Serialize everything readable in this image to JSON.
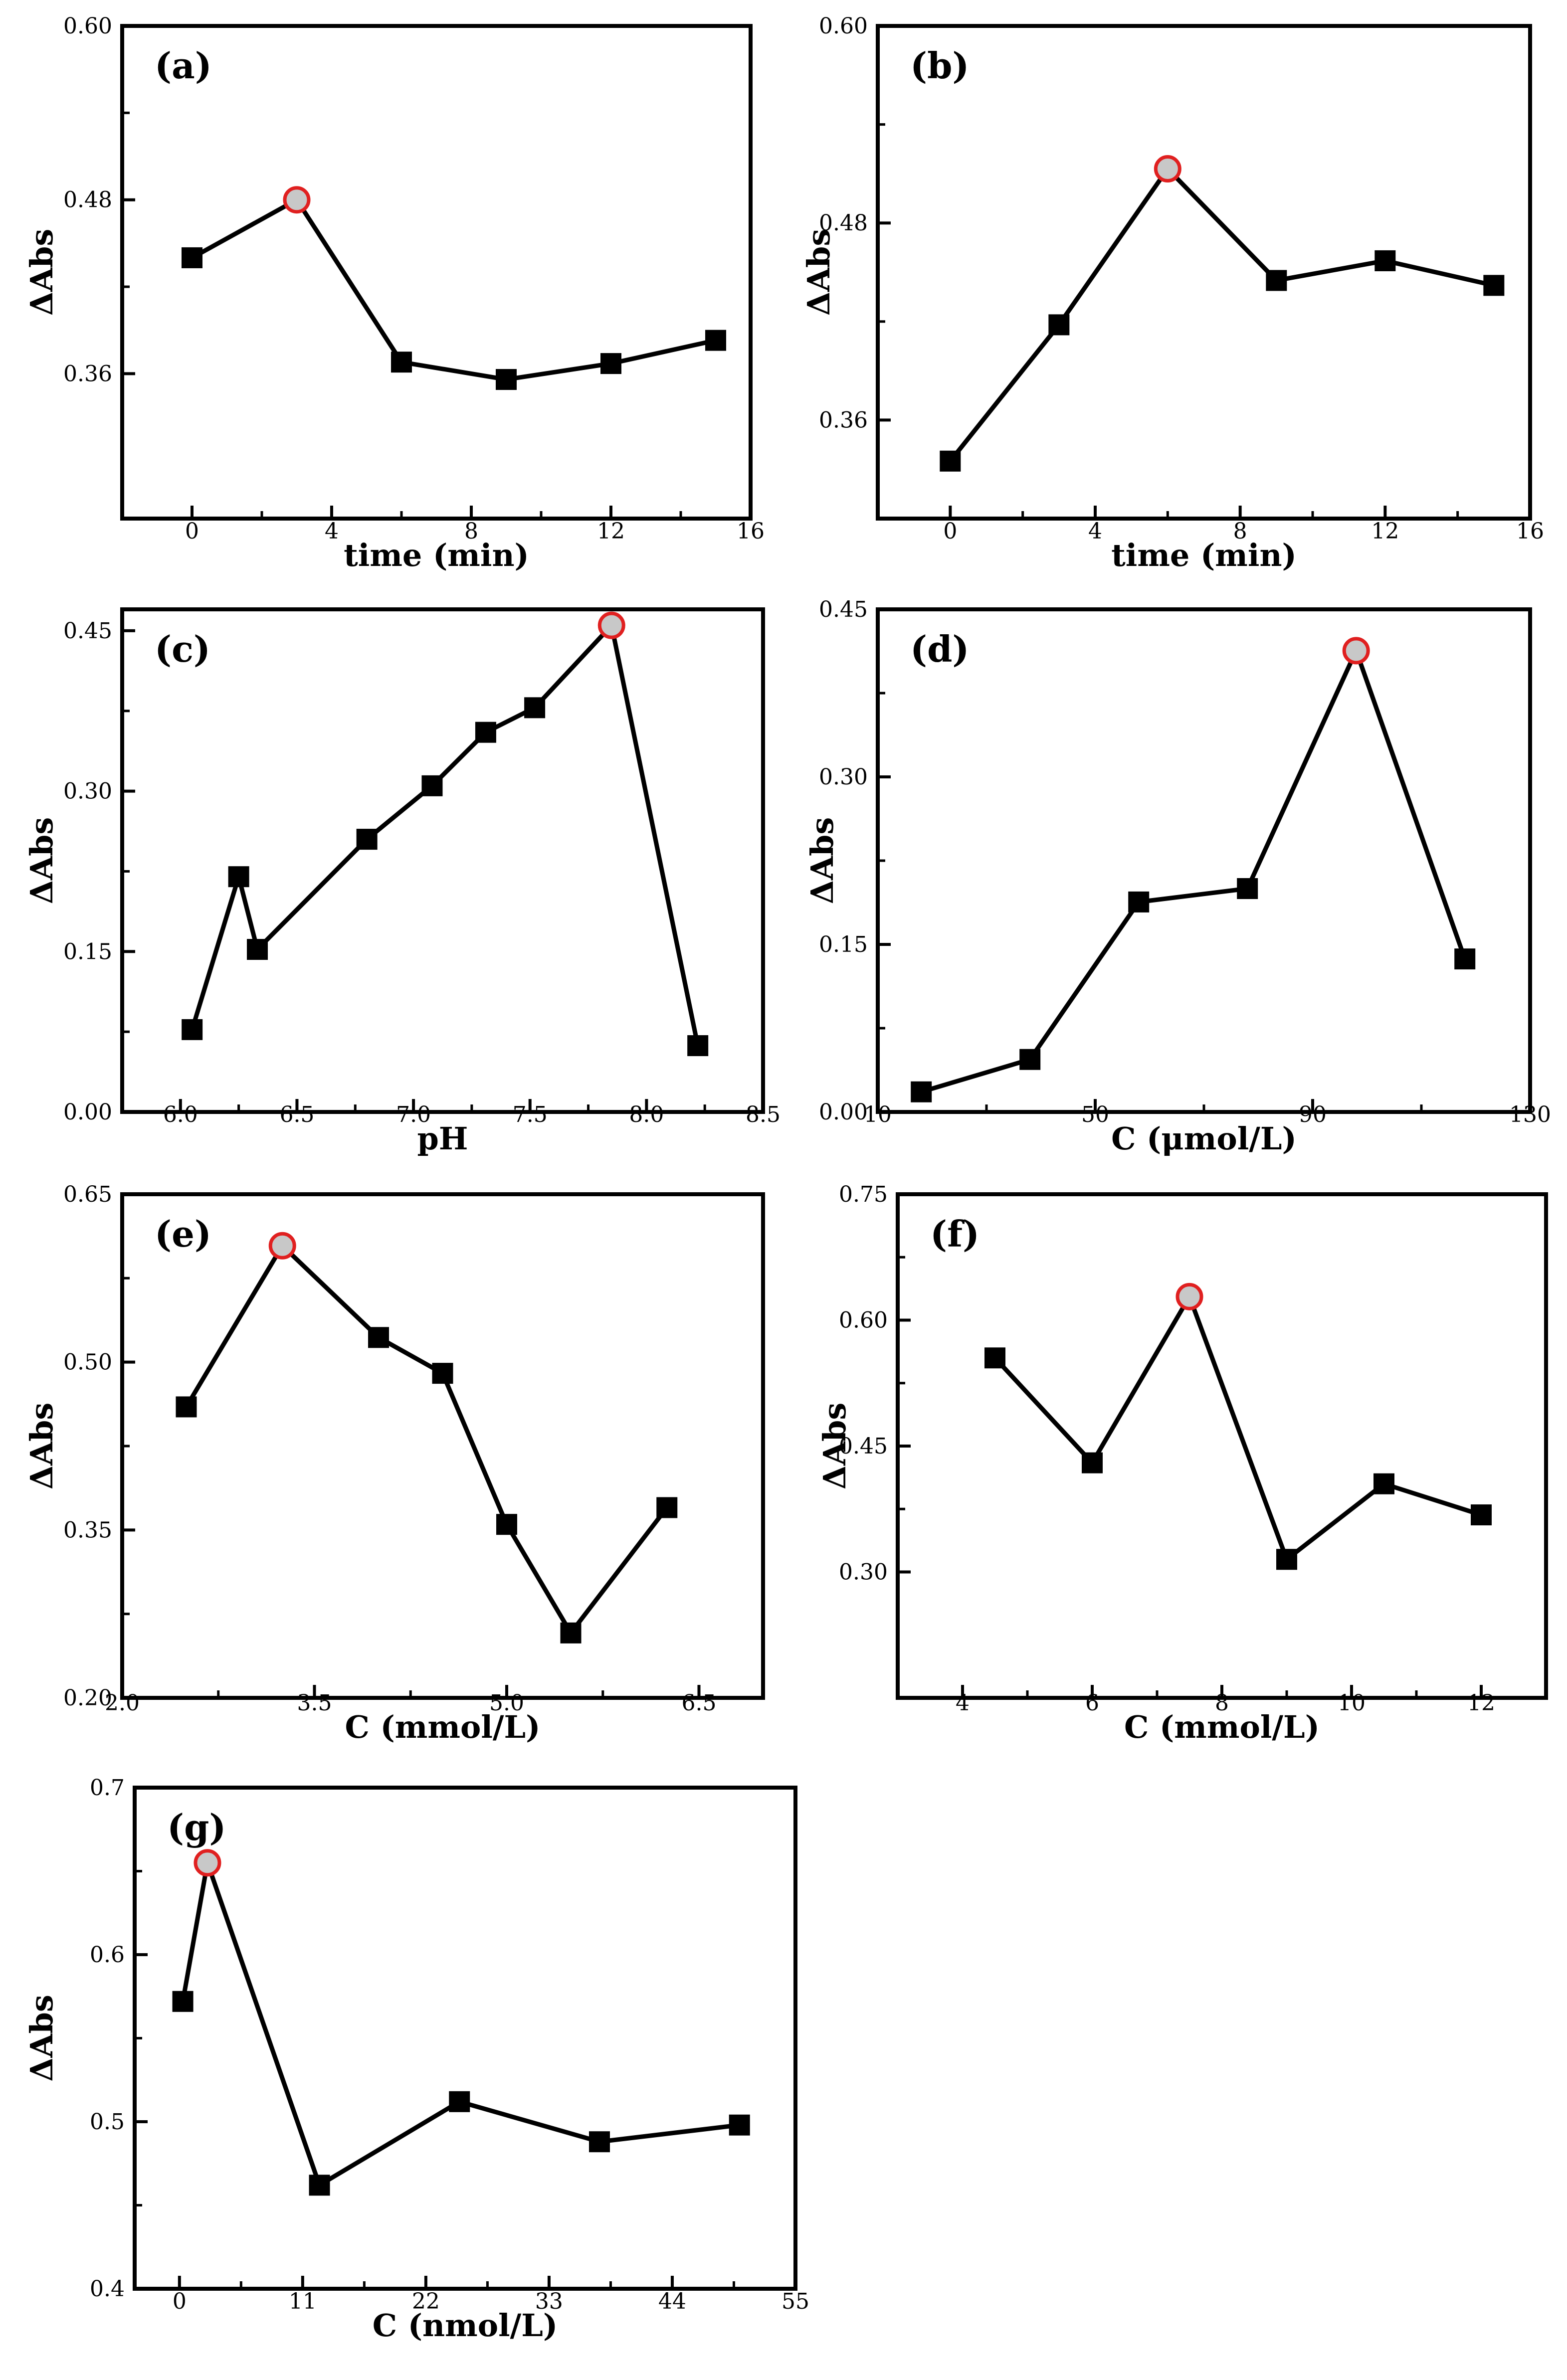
{
  "figure": {
    "title": ""
  },
  "colors": {
    "line": "#000000",
    "marker": "#000000",
    "highlight_fill": "#c8c8c8",
    "highlight_stroke": "#e02020"
  },
  "chart_data": [
    {
      "id": "a",
      "panel_label": "(a)",
      "type": "line",
      "xlabel": "time (min)",
      "ylabel": "ΔAbs",
      "xlim": [
        -2,
        16
      ],
      "ylim": [
        0.26,
        0.6
      ],
      "xticks": [
        0,
        4,
        8,
        12,
        16
      ],
      "xtick_labels": [
        "0",
        "4",
        "8",
        "12",
        "16"
      ],
      "yticks": [
        0.36,
        0.48,
        0.6
      ],
      "ytick_labels": [
        "0.36",
        "0.48",
        "0.60"
      ],
      "x": [
        0,
        3,
        6,
        9,
        12,
        15
      ],
      "y": [
        0.44,
        0.48,
        0.368,
        0.356,
        0.367,
        0.383
      ],
      "highlight_index": 1
    },
    {
      "id": "b",
      "panel_label": "(b)",
      "type": "line",
      "xlabel": "time (min)",
      "ylabel": "ΔAbs",
      "xlim": [
        -2,
        16
      ],
      "ylim": [
        0.3,
        0.6
      ],
      "xticks": [
        0,
        4,
        8,
        12,
        16
      ],
      "xtick_labels": [
        "0",
        "4",
        "8",
        "12",
        "16"
      ],
      "yticks": [
        0.36,
        0.48,
        0.6
      ],
      "ytick_labels": [
        "0.36",
        "0.48",
        "0.60"
      ],
      "x": [
        0,
        3,
        6,
        9,
        12,
        15
      ],
      "y": [
        0.335,
        0.418,
        0.513,
        0.445,
        0.457,
        0.442
      ],
      "highlight_index": 2
    },
    {
      "id": "c",
      "panel_label": "(c)",
      "type": "line",
      "xlabel": "pH",
      "ylabel": "ΔAbs",
      "xlim": [
        5.75,
        8.5
      ],
      "ylim": [
        0.0,
        0.47
      ],
      "xticks": [
        6.0,
        6.5,
        7.0,
        7.5,
        8.0,
        8.5
      ],
      "xtick_labels": [
        "6.0",
        "6.5",
        "7.0",
        "7.5",
        "8.0",
        "8.5"
      ],
      "yticks": [
        0.0,
        0.15,
        0.3,
        0.45
      ],
      "ytick_labels": [
        "0.00",
        "0.15",
        "0.30",
        "0.45"
      ],
      "x": [
        6.05,
        6.25,
        6.33,
        6.8,
        7.08,
        7.31,
        7.52,
        7.85,
        8.22
      ],
      "y": [
        0.077,
        0.22,
        0.152,
        0.255,
        0.305,
        0.355,
        0.378,
        0.455,
        0.062
      ],
      "highlight_index": 7
    },
    {
      "id": "d",
      "panel_label": "(d)",
      "type": "line",
      "xlabel": "C (μmol/L)",
      "ylabel": "ΔAbs",
      "xlim": [
        10,
        130
      ],
      "ylim": [
        0.0,
        0.45
      ],
      "xticks": [
        10,
        50,
        90,
        130
      ],
      "xtick_labels": [
        "10",
        "50",
        "90",
        "130"
      ],
      "yticks": [
        0.0,
        0.15,
        0.3,
        0.45
      ],
      "ytick_labels": [
        "0.00",
        "0.15",
        "0.30",
        "0.45"
      ],
      "x": [
        18,
        38,
        58,
        78,
        98,
        118
      ],
      "y": [
        0.018,
        0.047,
        0.188,
        0.2,
        0.413,
        0.137
      ],
      "highlight_index": 4
    },
    {
      "id": "e",
      "panel_label": "(e)",
      "type": "line",
      "xlabel": "C (mmol/L)",
      "ylabel": "ΔAbs",
      "xlim": [
        2.0,
        7.0
      ],
      "ylim": [
        0.2,
        0.65
      ],
      "xticks": [
        2.0,
        3.5,
        5.0,
        6.5
      ],
      "xtick_labels": [
        "2.0",
        "3.5",
        "5.0",
        "6.5"
      ],
      "yticks": [
        0.2,
        0.35,
        0.5,
        0.65
      ],
      "ytick_labels": [
        "0.20",
        "0.35",
        "0.50",
        "0.65"
      ],
      "x": [
        2.5,
        3.25,
        4.0,
        4.5,
        5.0,
        5.5,
        6.25
      ],
      "y": [
        0.46,
        0.604,
        0.522,
        0.49,
        0.355,
        0.258,
        0.37
      ],
      "highlight_index": 1
    },
    {
      "id": "f",
      "panel_label": "(f)",
      "type": "line",
      "xlabel": "C (mmol/L)",
      "ylabel": "ΔAbs",
      "xlim": [
        3,
        13
      ],
      "ylim": [
        0.15,
        0.75
      ],
      "xticks": [
        4,
        6,
        8,
        10,
        12
      ],
      "xtick_labels": [
        "4",
        "6",
        "8",
        "10",
        "12"
      ],
      "yticks": [
        0.3,
        0.45,
        0.6,
        0.75
      ],
      "ytick_labels": [
        "0.30",
        "0.45",
        "0.60",
        "0.75"
      ],
      "x": [
        4.5,
        6,
        7.5,
        9,
        10.5,
        12
      ],
      "y": [
        0.555,
        0.43,
        0.628,
        0.315,
        0.405,
        0.368
      ],
      "highlight_index": 2
    },
    {
      "id": "g",
      "panel_label": "(g)",
      "type": "line",
      "xlabel": "C (nmol/L)",
      "ylabel": "ΔAbs",
      "xlim": [
        -4,
        55
      ],
      "ylim": [
        0.4,
        0.7
      ],
      "xticks": [
        0,
        11,
        22,
        33,
        44,
        55
      ],
      "xtick_labels": [
        "0",
        "11",
        "22",
        "33",
        "44",
        "55"
      ],
      "yticks": [
        0.4,
        0.5,
        0.6,
        0.7
      ],
      "ytick_labels": [
        "0.4",
        "0.5",
        "0.6",
        "0.7"
      ],
      "x": [
        0.3,
        2.5,
        12.5,
        25,
        37.5,
        50
      ],
      "y": [
        0.572,
        0.655,
        0.462,
        0.512,
        0.488,
        0.498
      ],
      "highlight_index": 1
    }
  ]
}
